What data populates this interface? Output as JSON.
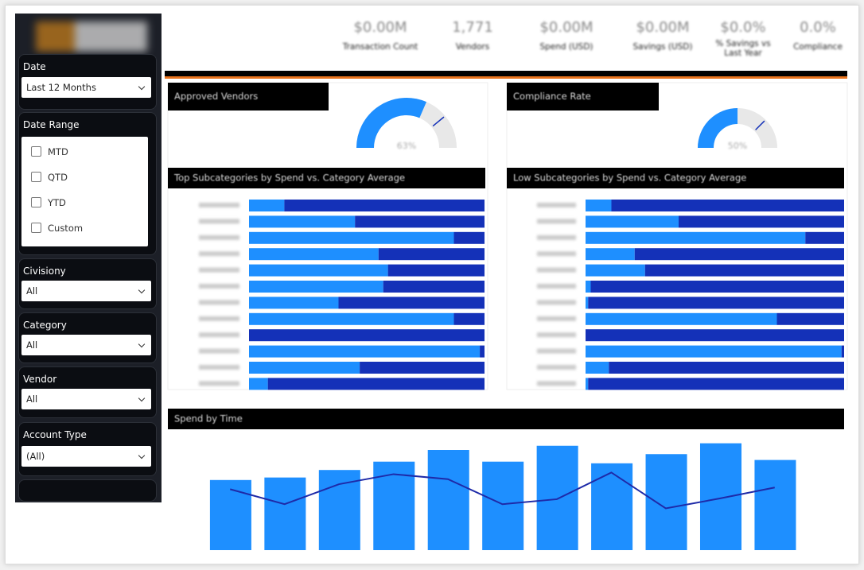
{
  "sidebar": {
    "filters": [
      {
        "label": "Date",
        "value": "Last 12 Months"
      },
      {
        "label": "Date Range",
        "options": [
          "MTD",
          "QTD",
          "YTD",
          "Custom"
        ]
      },
      {
        "label": "Civisiony",
        "value": "All"
      },
      {
        "label": "Category",
        "value": "All"
      },
      {
        "label": "Vendor",
        "value": "All"
      },
      {
        "label": "Account Type",
        "value": "(All)"
      }
    ]
  },
  "kpis": [
    {
      "value": "$0.00M",
      "label": "Transaction Count"
    },
    {
      "value": "1,771",
      "label": "Vendors"
    },
    {
      "value": "$0.00M",
      "label": "Spend (USD)"
    },
    {
      "value": "$0.00M",
      "label": "Savings (USD)"
    },
    {
      "value": "$0.0%",
      "label": "% Savings vs Last Year"
    },
    {
      "value": "0.0%",
      "label": "Compliance"
    }
  ],
  "chart_data": [
    {
      "type": "gauge",
      "title": "Approved Vendors",
      "value": 63,
      "value_label": "63%",
      "target": 78,
      "ylim": [
        0,
        100
      ],
      "color": "#1e8fff",
      "track_color": "#e8e8e8",
      "target_color": "#1431b8"
    },
    {
      "type": "gauge",
      "title": "Compliance Rate",
      "value": 50,
      "value_label": "50%",
      "target": 75,
      "ylim": [
        0,
        100
      ],
      "color": "#1e8fff",
      "track_color": "#e8e8e8",
      "target_color": "#1431b8"
    },
    {
      "type": "stacked_hbar",
      "title": "Top Subcategories by Spend vs. Category Average",
      "categories": [
        null,
        null,
        null,
        null,
        null,
        null,
        null,
        null,
        null,
        null,
        null,
        null
      ],
      "xlim": [
        0,
        100
      ],
      "series": [
        {
          "color": "#1e8fff",
          "values": [
            15,
            45,
            87,
            55,
            59,
            57,
            38,
            87,
            0,
            98,
            47,
            8
          ]
        },
        {
          "color": "#1431b8",
          "values": [
            85,
            55,
            13,
            45,
            41,
            43,
            62,
            13,
            100,
            2,
            53,
            92
          ]
        }
      ]
    },
    {
      "type": "stacked_hbar",
      "title": "Low Subcategories by Spend vs. Category Average",
      "categories": [
        null,
        null,
        null,
        null,
        null,
        null,
        null,
        null,
        null,
        null,
        null,
        null
      ],
      "xlim": [
        0,
        100
      ],
      "series": [
        {
          "color": "#1e8fff",
          "values": [
            10,
            36,
            85,
            19,
            23,
            2,
            1,
            74,
            0,
            99,
            9,
            1
          ]
        },
        {
          "color": "#1431b8",
          "values": [
            90,
            64,
            15,
            81,
            77,
            98,
            99,
            26,
            100,
            1,
            91,
            99
          ]
        }
      ]
    },
    {
      "type": "combo",
      "title": "Spend by Time",
      "categories": [
        null,
        null,
        null,
        null,
        null,
        null,
        null,
        null,
        null,
        null,
        null
      ],
      "ylim": [
        0,
        140
      ],
      "series": [
        {
          "type": "bar",
          "color": "#1e8fff",
          "values": [
            84,
            87,
            96,
            106,
            120,
            106,
            125,
            104,
            115,
            128,
            108
          ]
        },
        {
          "type": "line",
          "color": "#1e2aa8",
          "values": [
            73,
            55,
            79,
            91,
            85,
            55,
            61,
            93,
            50,
            62,
            75
          ]
        }
      ]
    }
  ]
}
